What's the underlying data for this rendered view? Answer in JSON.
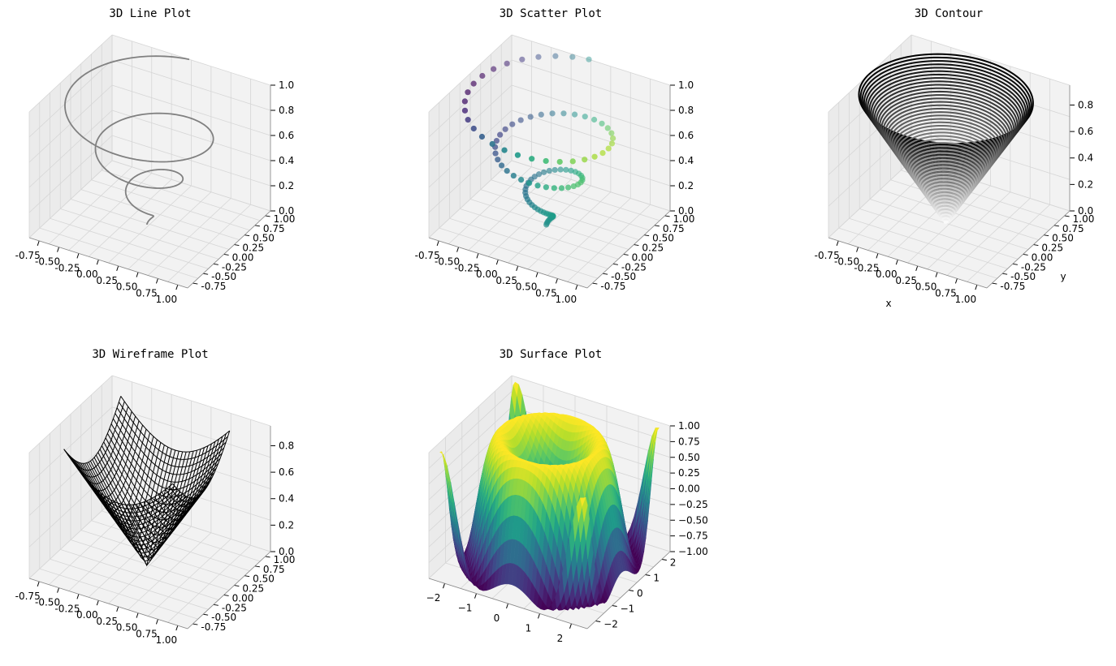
{
  "chart_data": [
    {
      "type": "line3d",
      "title": "3D Line Plot",
      "xlabel": "",
      "ylabel": "",
      "zlabel": "",
      "xlim": [
        -0.95,
        1.0
      ],
      "ylim": [
        -0.95,
        1.0
      ],
      "zlim": [
        0,
        1
      ],
      "xticks": [
        "-0.75",
        "-0.50",
        "-0.25",
        "0.00",
        "0.25",
        "0.50",
        "0.75",
        "1.00"
      ],
      "yticks": [
        "-0.75",
        "-0.50",
        "-0.25",
        "0.00",
        "0.25",
        "0.50",
        "0.75",
        "1.00"
      ],
      "zticks": [
        "0.0",
        "0.2",
        "0.4",
        "0.6",
        "0.8",
        "1.0"
      ],
      "series": [
        {
          "kind": "helix",
          "z_range": [
            0,
            1
          ],
          "turns": 3,
          "color": "#808080"
        }
      ],
      "grid": true
    },
    {
      "type": "scatter3d",
      "title": "3D Scatter Plot",
      "xlabel": "",
      "ylabel": "",
      "zlabel": "",
      "xlim": [
        -0.95,
        1.0
      ],
      "ylim": [
        -0.95,
        1.0
      ],
      "zlim": [
        0,
        1
      ],
      "xticks": [
        "-0.75",
        "-0.50",
        "-0.25",
        "0.00",
        "0.25",
        "0.50",
        "0.75",
        "1.00"
      ],
      "yticks": [
        "-0.75",
        "-0.50",
        "-0.25",
        "0.00",
        "0.25",
        "0.50",
        "0.75",
        "1.00"
      ],
      "zticks": [
        "0.0",
        "0.2",
        "0.4",
        "0.6",
        "0.8",
        "1.0"
      ],
      "series": [
        {
          "kind": "helix",
          "z_range": [
            0,
            1
          ],
          "turns": 3,
          "points": 100,
          "colormap": "viridis"
        }
      ],
      "grid": true
    },
    {
      "type": "contour3d",
      "title": "3D Contour",
      "xlabel": "x",
      "ylabel": "y",
      "zlabel": "",
      "xlim": [
        -0.95,
        1.0
      ],
      "ylim": [
        -0.95,
        1.0
      ],
      "zlim": [
        0,
        0.95
      ],
      "xticks": [
        "-0.75",
        "-0.50",
        "-0.25",
        "0.00",
        "0.25",
        "0.50",
        "0.75",
        "1.00"
      ],
      "yticks": [
        "-0.75",
        "-0.50",
        "-0.25",
        "0.00",
        "0.25",
        "0.50",
        "0.75",
        "1.00"
      ],
      "zticks": [
        "0.0",
        "0.2",
        "0.4",
        "0.6",
        "0.8"
      ],
      "function": "z = sqrt(x^2 + y^2)",
      "levels": 50,
      "colormap": "binary",
      "grid": true
    },
    {
      "type": "wireframe3d",
      "title": "3D Wireframe Plot",
      "xlabel": "",
      "ylabel": "",
      "zlabel": "",
      "xlim": [
        -0.95,
        1.0
      ],
      "ylim": [
        -0.95,
        1.0
      ],
      "zlim": [
        0,
        0.95
      ],
      "xticks": [
        "-0.75",
        "-0.50",
        "-0.25",
        "0.00",
        "0.25",
        "0.50",
        "0.75",
        "1.00"
      ],
      "yticks": [
        "-0.75",
        "-0.50",
        "-0.25",
        "0.00",
        "0.25",
        "0.50",
        "0.75",
        "1.00"
      ],
      "zticks": [
        "0.0",
        "0.2",
        "0.4",
        "0.6",
        "0.8"
      ],
      "function": "z = sqrt(x^2 + y^2)",
      "color": "#000000",
      "grid": true
    },
    {
      "type": "surface3d",
      "title": "3D Surface Plot",
      "xlabel": "",
      "ylabel": "",
      "zlabel": "",
      "xlim": [
        -2.2,
        2.2
      ],
      "ylim": [
        -2.2,
        2.2
      ],
      "zlim": [
        -1,
        1
      ],
      "xticks": [
        "−2",
        "−1",
        "0",
        "1",
        "2"
      ],
      "yticks": [
        "−2",
        "−1",
        "0",
        "1",
        "2"
      ],
      "zticks": [
        "−1.00",
        "−0.75",
        "−0.50",
        "−0.25",
        "0.00",
        "0.25",
        "0.50",
        "0.75",
        "1.00"
      ],
      "function": "z = sin(x^2 + y^2)",
      "colormap": "viridis",
      "grid": true
    }
  ],
  "colors": {
    "pane": "#f2f2f2",
    "pane_side": "#ebebeb",
    "grid": "#d6d6d6",
    "axis": "#000000",
    "line": "#808080"
  }
}
